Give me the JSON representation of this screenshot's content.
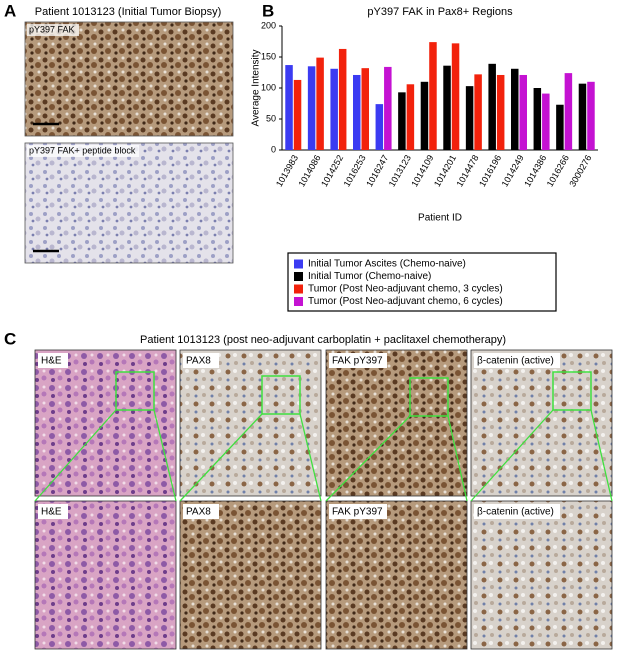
{
  "panel_labels": [
    "A",
    "B",
    "C"
  ],
  "panel_a": {
    "title": "Patient 1013123 (Initial Tumor Biopsy)",
    "image_labels": [
      "pY397 FAK",
      "pY397 FAK+ peptide block"
    ]
  },
  "chart_data": {
    "type": "bar",
    "title": "pY397 FAK in Pax8+ Regions",
    "y_label": "Average Intensity",
    "x_label": "Patient ID",
    "categories": [
      "1013983",
      "1014086",
      "1014252",
      "1016253",
      "1016247",
      "1013123",
      "1014109",
      "1014201",
      "1014478",
      "1016196",
      "1014249",
      "1014386",
      "1016266",
      "3000276"
    ],
    "series": [
      {
        "name": "Initial Tumor Ascites (Chemo-naive)",
        "color": "#3b3bf2",
        "values": [
          137,
          135,
          131,
          121,
          74,
          null,
          null,
          null,
          null,
          null,
          null,
          null,
          null,
          null
        ]
      },
      {
        "name": "Initial Tumor (Chemo-naive)",
        "color": "#000000",
        "values": [
          null,
          null,
          null,
          null,
          null,
          93,
          110,
          136,
          103,
          139,
          131,
          100,
          73,
          107
        ]
      },
      {
        "name": "Tumor (Post Neo-adjuvant chemo, 3 cycles)",
        "color": "#f2220c",
        "values": [
          113,
          149,
          163,
          132,
          null,
          106,
          174,
          172,
          122,
          121,
          null,
          null,
          null,
          null
        ]
      },
      {
        "name": "Tumor (Post Neo-adjuvant chemo, 6 cycles)",
        "color": "#c412d2",
        "values": [
          null,
          null,
          null,
          null,
          134,
          null,
          null,
          null,
          null,
          null,
          121,
          91,
          124,
          110
        ]
      }
    ],
    "ylim": [
      0,
      200
    ],
    "yticks": [
      0,
      50,
      100,
      150,
      200
    ]
  },
  "panel_c": {
    "title": "Patient 1013123 (post neo-adjuvant carboplatin + paclitaxel chemotherapy)",
    "top_labels": [
      "H&E",
      "PAX8",
      "FAK pY397",
      "β-catenin (active)"
    ],
    "bottom_labels": [
      "H&E",
      "PAX8",
      "FAK pY397",
      "β-catenin (active)"
    ]
  }
}
